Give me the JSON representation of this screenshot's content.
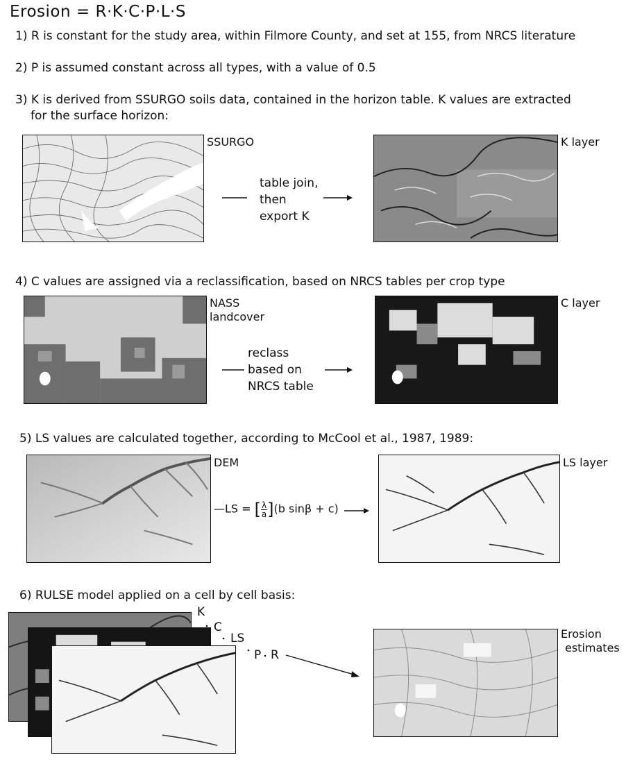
{
  "title": "Erosion = R·K·C·P·L·S",
  "steps": {
    "s1": "1) R is constant for the study area, within Filmore County, and set at 155, from NRCS literature",
    "s2": "2) P is assumed constant across all types, with a value of 0.5",
    "s3_line1": "3) K is derived from SSURGO soils data, contained in the horizon table. K values are extracted",
    "s3_line2": "for the surface horizon:",
    "s4": "4) C values are assigned via a reclassification, based on NRCS tables per crop type",
    "s5": "5) LS values are calculated together, according to McCool et al., 1987, 1989:",
    "s6": "6) RULSE model applied on a cell by cell basis:"
  },
  "row_k": {
    "left_label": "SSURGO",
    "right_label": "K layer",
    "flow_lines": [
      "table join,",
      "then",
      "export K"
    ]
  },
  "row_c": {
    "left_label_1": "NASS",
    "left_label_2": "landcover",
    "right_label": "C layer",
    "flow_lines": [
      "reclass",
      "based on",
      "NRCS table"
    ]
  },
  "row_ls": {
    "left_label": "DEM",
    "right_label": "LS layer",
    "formula": {
      "lhs": "LS = ",
      "frac_num": "λ",
      "frac_den": "a",
      "rhs": "(b sinβ + c)"
    }
  },
  "row_rusle": {
    "stack_labels": {
      "k": "K",
      "c": "C",
      "ls": "LS",
      "p": "P",
      "r": "R"
    },
    "result_label_1": "Erosion",
    "result_label_2": "estimates"
  },
  "map_icons": [
    "ssurgo-map",
    "k-layer-map",
    "nass-map",
    "c-layer-map",
    "dem-map",
    "ls-layer-map",
    "erosion-map"
  ]
}
